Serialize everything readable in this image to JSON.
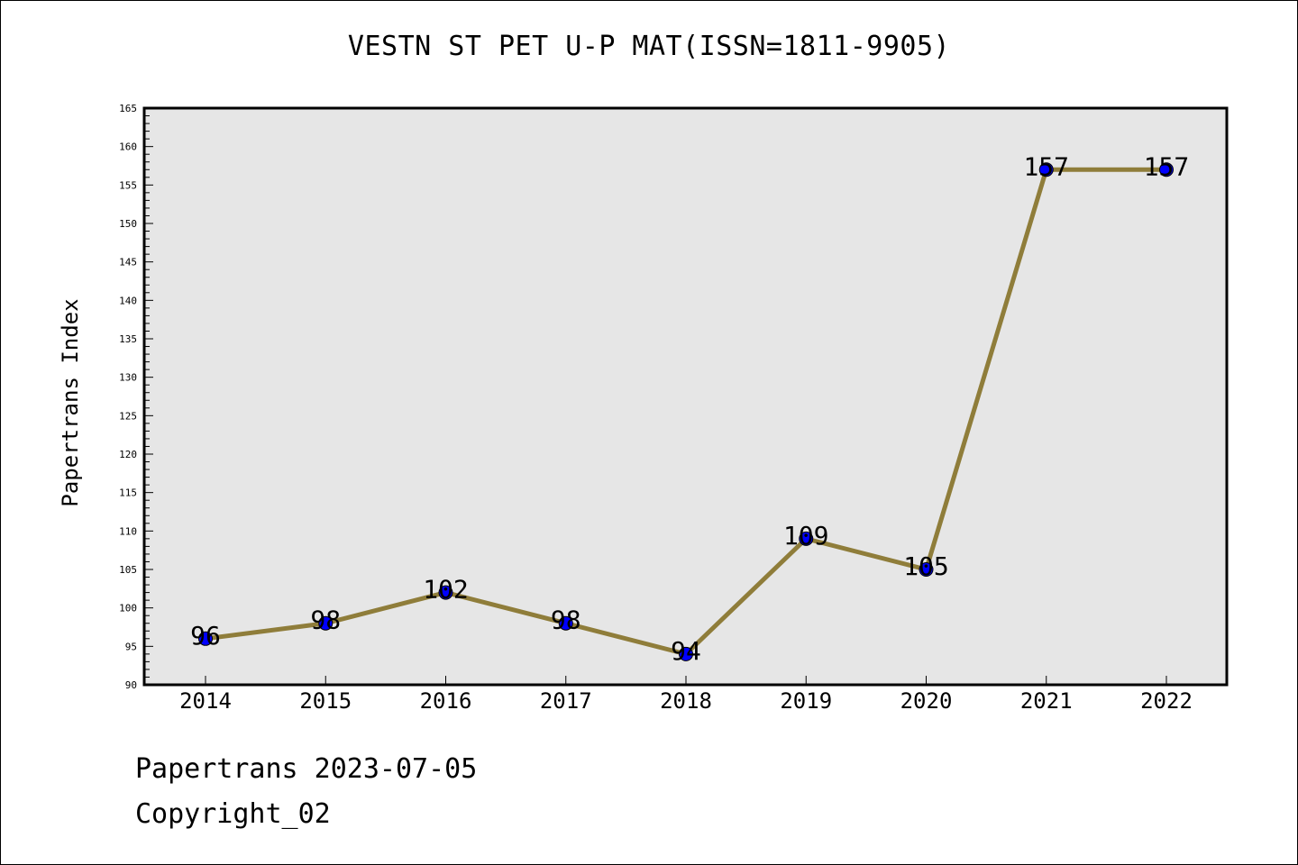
{
  "chart_data": {
    "type": "line",
    "title": "VESTN ST PET U-P MAT(ISSN=1811-9905)",
    "xlabel": "",
    "ylabel": "Papertrans Index",
    "categories": [
      "2014",
      "2015",
      "2016",
      "2017",
      "2018",
      "2019",
      "2020",
      "2021",
      "2022"
    ],
    "series": [
      {
        "values": [
          96,
          98,
          102,
          98,
          94,
          109,
          105,
          157,
          157
        ]
      }
    ],
    "data_labels": [
      "96",
      "98",
      "102",
      "98",
      "94",
      "109",
      "105",
      "157",
      "157"
    ],
    "ylim": [
      90,
      165
    ],
    "y_ticks": [
      90,
      95,
      100,
      105,
      110,
      115,
      120,
      125,
      130,
      135,
      140,
      145,
      150,
      155,
      160,
      165
    ],
    "grid": false,
    "legend": "none",
    "colors": {
      "line": "#8f7d3a",
      "marker": "#0000ff",
      "plot_background": "#e6e6e6",
      "axis": "#000000"
    }
  },
  "footer": {
    "date_line": "Papertrans 2023-07-05",
    "copyright_line": "Copyright_02"
  }
}
